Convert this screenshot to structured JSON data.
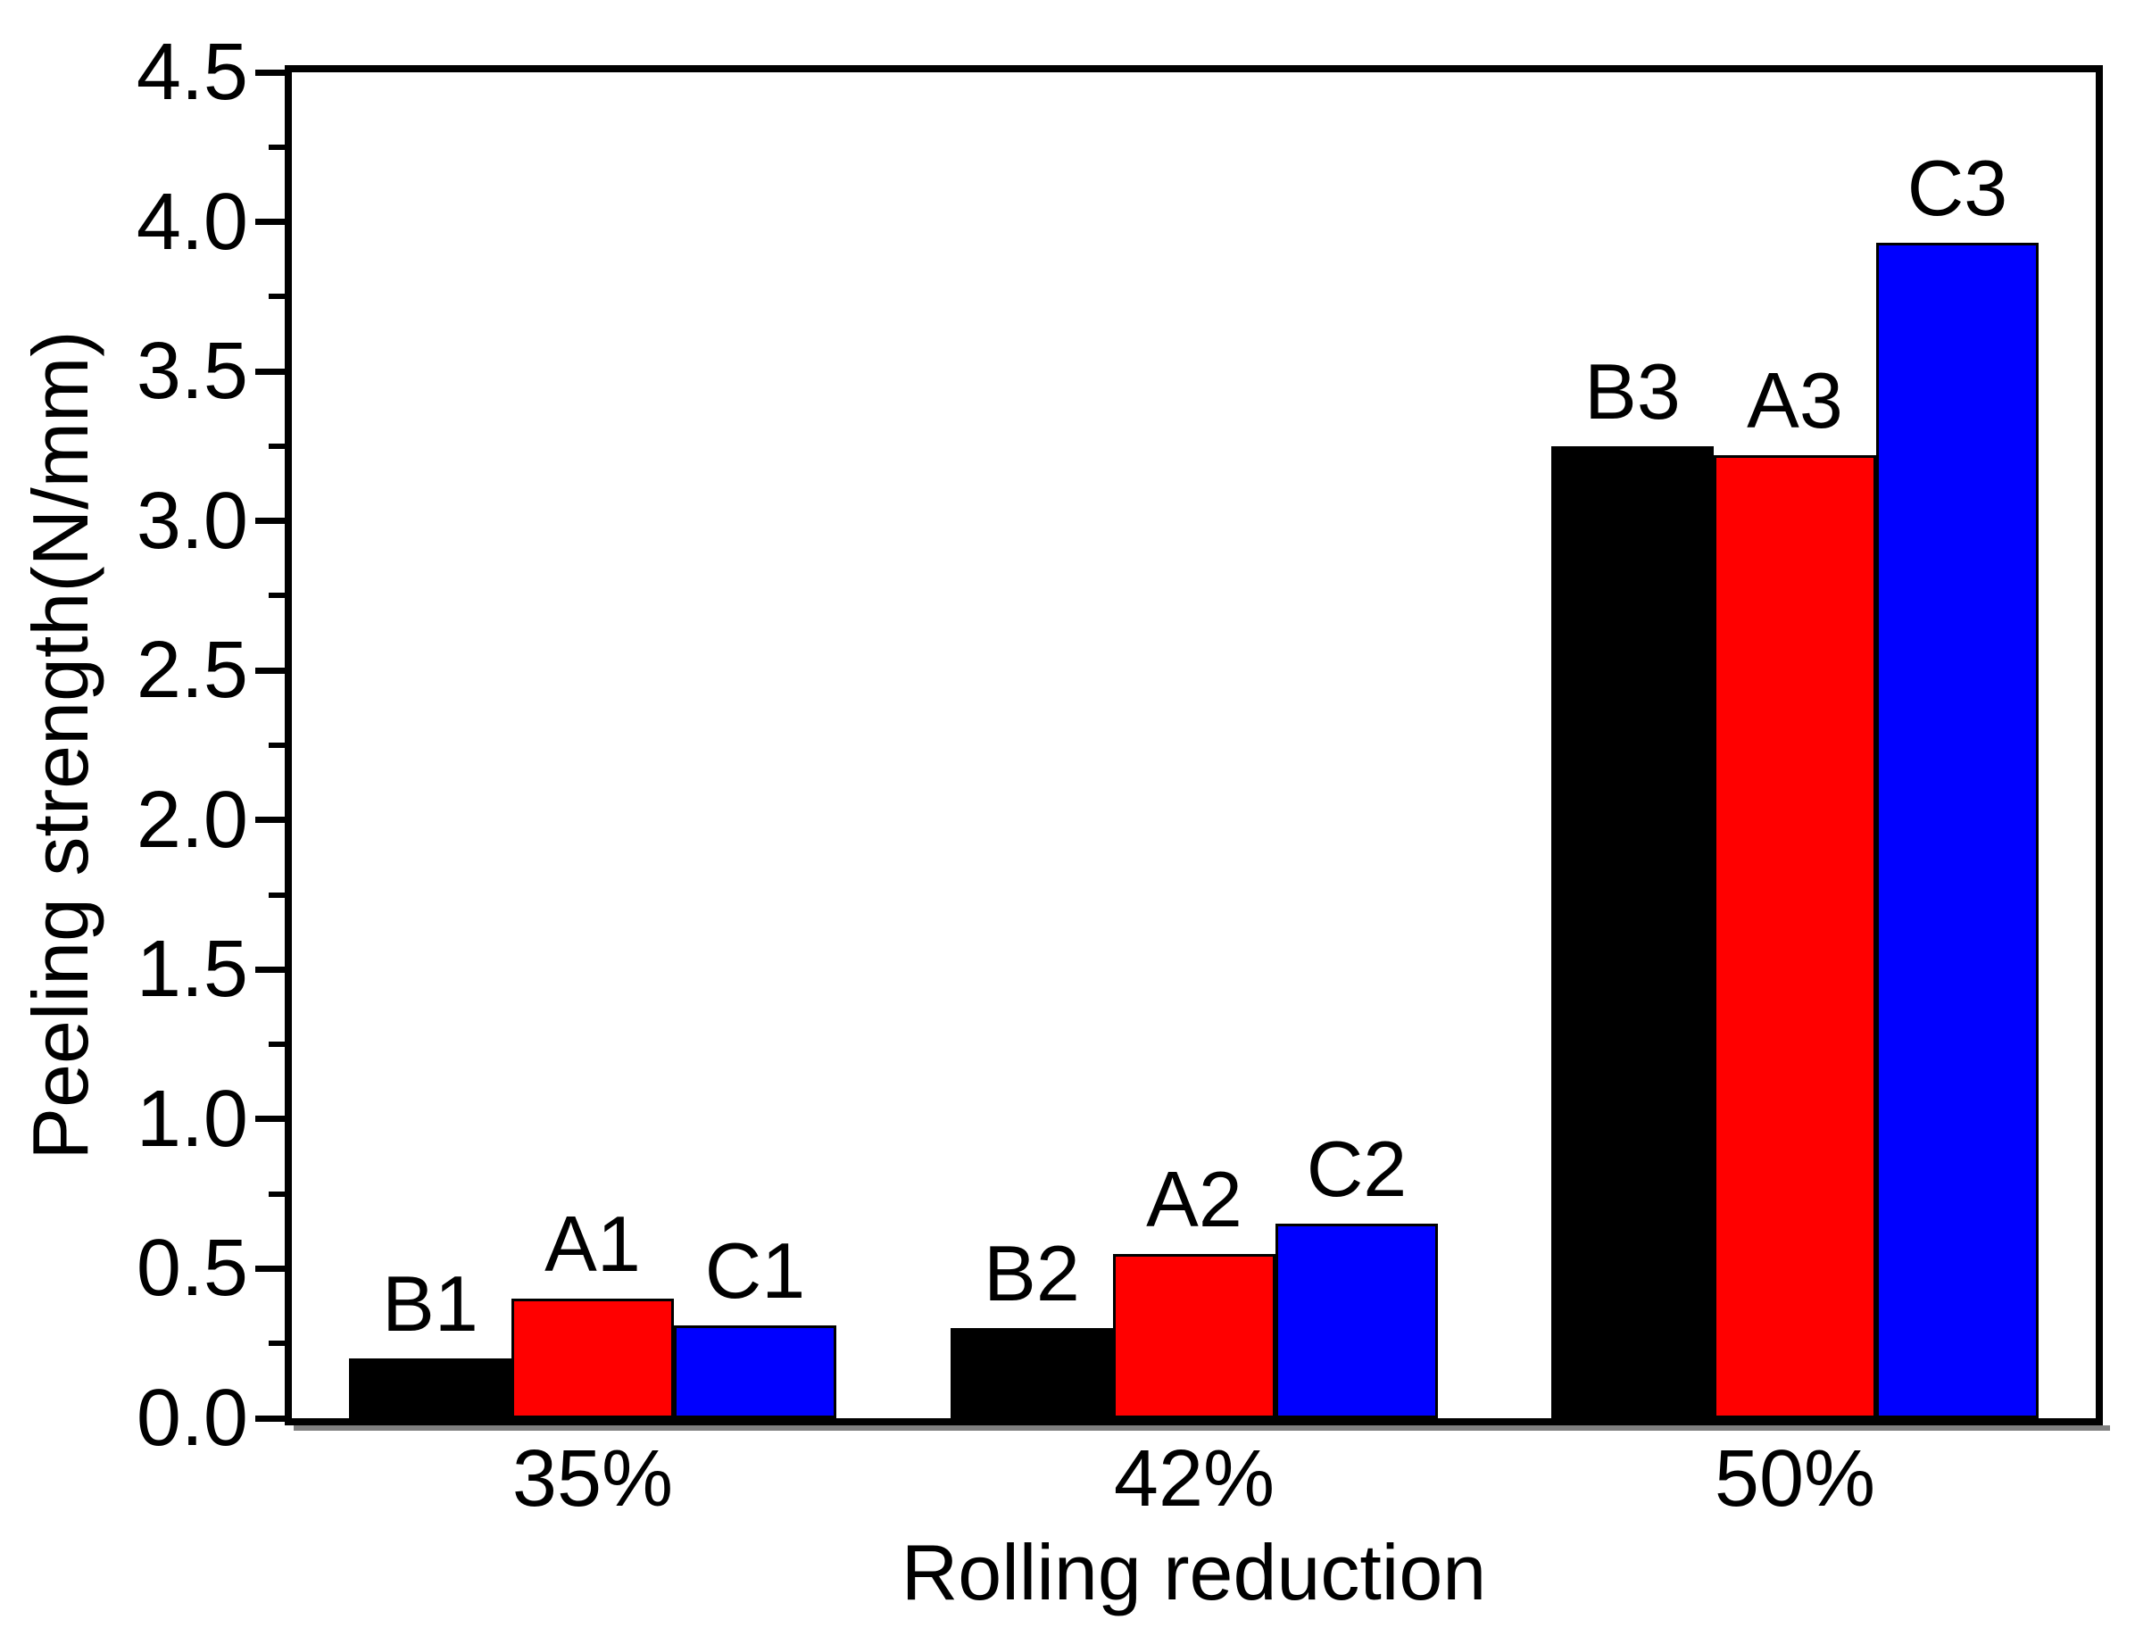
{
  "figure": {
    "background": "#ffffff",
    "text_color": "#000000",
    "axis_color": "#000000",
    "shadow_color": "#7f7f7f"
  },
  "chart_data": {
    "type": "bar",
    "title": "",
    "xlabel": "Rolling reduction",
    "ylabel": "Peeling strength(N/mm)",
    "categories": [
      "35%",
      "42%",
      "50%"
    ],
    "series": [
      {
        "name": "B",
        "color": "#000000",
        "values": [
          0.2,
          0.3,
          3.25
        ],
        "bar_labels": [
          "B1",
          "B2",
          "B3"
        ]
      },
      {
        "name": "A",
        "color": "#ff0000",
        "values": [
          0.4,
          0.55,
          3.22
        ],
        "bar_labels": [
          "A1",
          "A2",
          "A3"
        ]
      },
      {
        "name": "C",
        "color": "#0000ff",
        "values": [
          0.31,
          0.65,
          3.93
        ],
        "bar_labels": [
          "C1",
          "C2",
          "C3"
        ]
      }
    ],
    "ylim": [
      0,
      4.5
    ],
    "ytick_step": 0.5,
    "ytick_minor_step": 0.25,
    "ytick_labels": [
      "0.0",
      "0.5",
      "1.0",
      "1.5",
      "2.0",
      "2.5",
      "3.0",
      "3.5",
      "4.0",
      "4.5"
    ],
    "grid": false,
    "legend": "none",
    "bar_outline_color": "#000000"
  }
}
